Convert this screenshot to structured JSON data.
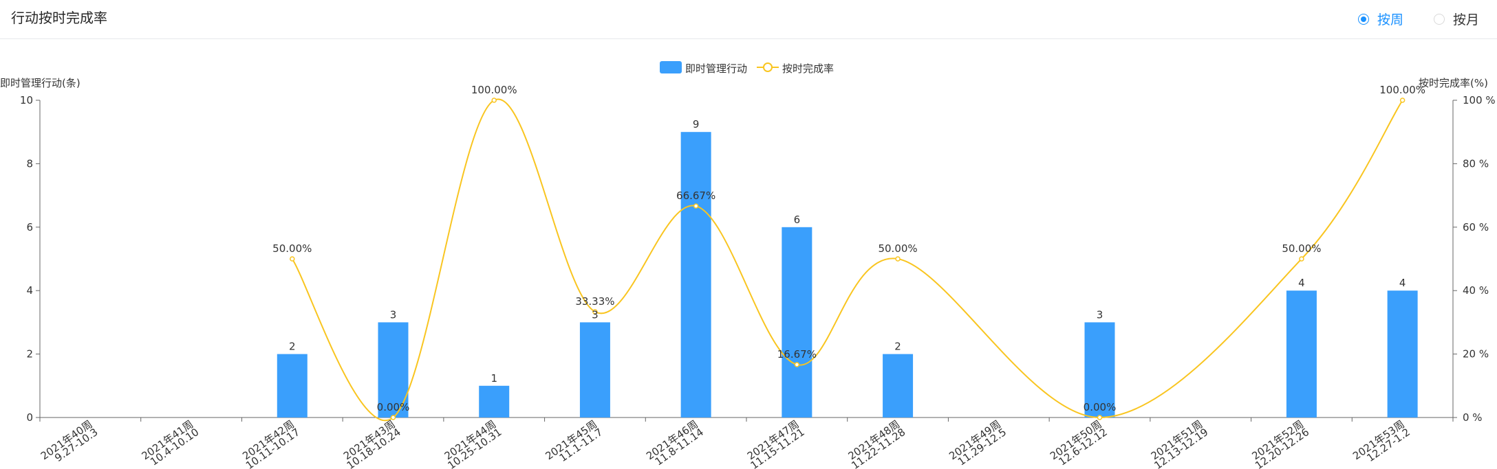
{
  "header": {
    "title": "行动按时完成率",
    "radios": [
      {
        "label": "按周",
        "checked": true
      },
      {
        "label": "按月",
        "checked": false
      }
    ]
  },
  "colors": {
    "bar": "#3a9ffc",
    "line": "#f9c520",
    "axis": "#666666",
    "radio_active": "#1890ff"
  },
  "chart_data": {
    "type": "bar",
    "title": "",
    "legend": {
      "placement": "top-center",
      "items": [
        "即时管理行动",
        "按时完成率"
      ]
    },
    "categories": [
      [
        "2021年40周",
        "9.27-10.3"
      ],
      [
        "2021年41周",
        "10.4-10.10"
      ],
      [
        "2021年42周",
        "10.11-10.17"
      ],
      [
        "2021年43周",
        "10.18-10.24"
      ],
      [
        "2021年44周",
        "10.25-10.31"
      ],
      [
        "2021年45周",
        "11.1-11.7"
      ],
      [
        "2021年46周",
        "11.8-11.14"
      ],
      [
        "2021年47周",
        "11.15-11.21"
      ],
      [
        "2021年48周",
        "11.22-11.28"
      ],
      [
        "2021年49周",
        "11.29-12.5"
      ],
      [
        "2021年50周",
        "12.6-12.12"
      ],
      [
        "2021年51周",
        "12.13-12.19"
      ],
      [
        "2021年52周",
        "12.20-12.26"
      ],
      [
        "2021年53周",
        "12.27-1.2"
      ]
    ],
    "y_left": {
      "label": "即时管理行动(条)",
      "min": 0,
      "max": 10,
      "ticks": [
        "0",
        "2",
        "4",
        "6",
        "8",
        "10"
      ]
    },
    "y_right": {
      "label": "按时完成率(%)",
      "min": 0,
      "max": 100,
      "ticks": [
        "0 %",
        "20 %",
        "40 %",
        "60 %",
        "80 %",
        "100 %"
      ]
    },
    "series": [
      {
        "name": "即时管理行动",
        "type": "bar",
        "axis": "left",
        "values": [
          null,
          null,
          2,
          3,
          1,
          3,
          9,
          6,
          2,
          null,
          3,
          null,
          4,
          4
        ],
        "labels": [
          null,
          null,
          "2",
          "3",
          "1",
          "3",
          "9",
          "6",
          "2",
          null,
          "3",
          null,
          "4",
          "4"
        ]
      },
      {
        "name": "按时完成率",
        "type": "line",
        "smooth": true,
        "axis": "right",
        "values": [
          null,
          null,
          50,
          0,
          100,
          33.33,
          66.67,
          16.67,
          50,
          null,
          0,
          null,
          50,
          100
        ],
        "labels": [
          null,
          null,
          "50.00%",
          "0.00%",
          "100.00%",
          "33.33%",
          "66.67%",
          "16.67%",
          "50.00%",
          null,
          "0.00%",
          null,
          "50.00%",
          "100.00%"
        ]
      }
    ],
    "grid": false
  }
}
